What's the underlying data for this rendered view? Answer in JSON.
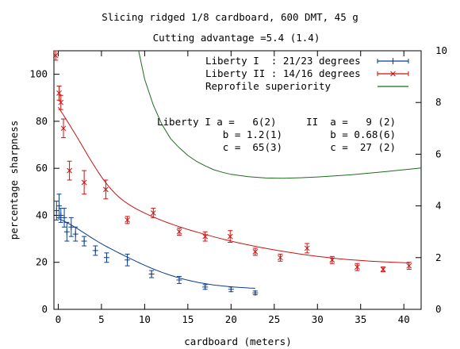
{
  "chart_data": {
    "type": "scatter",
    "title": "Slicing ridged 1/8 cardboard, 600 DMT, 45 g",
    "subtitle": "Cutting advantage =5.4 (1.4)",
    "xlabel": "cardboard (meters)",
    "ylabel": "percentage sharpness",
    "xlim": [
      -0.5,
      42
    ],
    "ylim": [
      0,
      110
    ],
    "y2lim": [
      0,
      10
    ],
    "x_ticks": [
      0,
      5,
      10,
      15,
      20,
      25,
      30,
      35,
      40
    ],
    "y_ticks": [
      0,
      20,
      40,
      60,
      80,
      100
    ],
    "y2_ticks": [
      0,
      2,
      4,
      6,
      8,
      10
    ],
    "legend_position": "top-right",
    "grid": false,
    "series": [
      {
        "name": "Liberty I  : 21/23 degrees",
        "color": "#0b3c8c",
        "marker": "plus",
        "axis": "y",
        "points": [
          {
            "x": -0.2,
            "y": 42,
            "err": 4
          },
          {
            "x": 0.1,
            "y": 44,
            "err": 5
          },
          {
            "x": 0.3,
            "y": 40,
            "err": 3
          },
          {
            "x": 0.7,
            "y": 39,
            "err": 4
          },
          {
            "x": 1.0,
            "y": 33,
            "err": 4
          },
          {
            "x": 1.5,
            "y": 35,
            "err": 4
          },
          {
            "x": 2.0,
            "y": 32,
            "err": 3
          },
          {
            "x": 3.0,
            "y": 29,
            "err": 2
          },
          {
            "x": 4.3,
            "y": 25,
            "err": 2
          },
          {
            "x": 5.6,
            "y": 22,
            "err": 2
          },
          {
            "x": 8.0,
            "y": 21,
            "err": 2.5
          },
          {
            "x": 10.8,
            "y": 15,
            "err": 1.5
          },
          {
            "x": 14.0,
            "y": 12.5,
            "err": 1.5
          },
          {
            "x": 17.0,
            "y": 9.5,
            "err": 1
          },
          {
            "x": 20.0,
            "y": 8.5,
            "err": 1
          },
          {
            "x": 22.8,
            "y": 7,
            "err": 0.8
          }
        ]
      },
      {
        "name": "Liberty II : 14/16 degrees",
        "color": "#cc1111",
        "marker": "cross",
        "axis": "y",
        "points": [
          {
            "x": -0.3,
            "y": 108,
            "err": 2
          },
          {
            "x": 0.1,
            "y": 92,
            "err": 3
          },
          {
            "x": 0.3,
            "y": 88,
            "err": 3
          },
          {
            "x": 0.6,
            "y": 77,
            "err": 4
          },
          {
            "x": 1.3,
            "y": 59,
            "err": 4
          },
          {
            "x": 3.0,
            "y": 54,
            "err": 5
          },
          {
            "x": 5.5,
            "y": 51,
            "err": 4
          },
          {
            "x": 8.0,
            "y": 38,
            "err": 1.5
          },
          {
            "x": 11.0,
            "y": 41,
            "err": 2
          },
          {
            "x": 14.0,
            "y": 33,
            "err": 1.5
          },
          {
            "x": 17.0,
            "y": 31,
            "err": 2
          },
          {
            "x": 19.9,
            "y": 31,
            "err": 2.5
          },
          {
            "x": 22.8,
            "y": 24.5,
            "err": 1.5
          },
          {
            "x": 25.7,
            "y": 22,
            "err": 1.5
          },
          {
            "x": 28.8,
            "y": 26,
            "err": 2
          },
          {
            "x": 31.7,
            "y": 21,
            "err": 1.5
          },
          {
            "x": 34.6,
            "y": 18,
            "err": 1.5
          },
          {
            "x": 37.6,
            "y": 17,
            "err": 1
          },
          {
            "x": 40.6,
            "y": 18.5,
            "err": 1.5
          }
        ]
      },
      {
        "name": "Reprofile superiority",
        "color": "#1f6b1f",
        "marker": "line",
        "axis": "y2",
        "curve": [
          {
            "x": 9.3,
            "y": 10.0
          },
          {
            "x": 10.0,
            "y": 8.9
          },
          {
            "x": 11.0,
            "y": 7.9
          },
          {
            "x": 12.0,
            "y": 7.15
          },
          {
            "x": 13.0,
            "y": 6.6
          },
          {
            "x": 14.0,
            "y": 6.25
          },
          {
            "x": 15.0,
            "y": 5.95
          },
          {
            "x": 16.0,
            "y": 5.72
          },
          {
            "x": 17.0,
            "y": 5.55
          },
          {
            "x": 18.0,
            "y": 5.4
          },
          {
            "x": 19.0,
            "y": 5.3
          },
          {
            "x": 20.0,
            "y": 5.22
          },
          {
            "x": 22.0,
            "y": 5.13
          },
          {
            "x": 24.0,
            "y": 5.08
          },
          {
            "x": 26.0,
            "y": 5.07
          },
          {
            "x": 28.0,
            "y": 5.09
          },
          {
            "x": 30.0,
            "y": 5.12
          },
          {
            "x": 32.0,
            "y": 5.16
          },
          {
            "x": 34.0,
            "y": 5.21
          },
          {
            "x": 36.0,
            "y": 5.27
          },
          {
            "x": 38.0,
            "y": 5.33
          },
          {
            "x": 40.0,
            "y": 5.4
          },
          {
            "x": 42.0,
            "y": 5.47
          }
        ]
      }
    ],
    "annotations": [
      "Liberty I a =   6(2)     II  a =   9 (2)",
      "           b = 1.2(1)        b = 0.68(6)",
      "           c =  65(3)        c =  27 (2)"
    ]
  }
}
